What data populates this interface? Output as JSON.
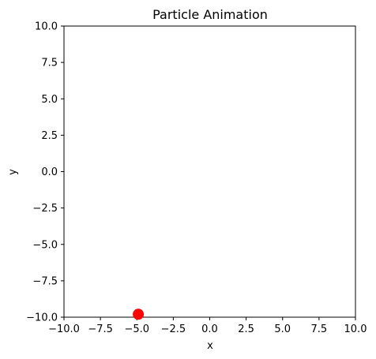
{
  "chart_data": {
    "type": "scatter",
    "title": "Particle Animation",
    "xlabel": "x",
    "ylabel": "y",
    "xlim": [
      -10,
      10
    ],
    "ylim": [
      -10,
      10
    ],
    "xticks": [
      -10.0,
      -7.5,
      -5.0,
      -2.5,
      0.0,
      2.5,
      5.0,
      7.5,
      10.0
    ],
    "xtick_labels": [
      "−10.0",
      "−7.5",
      "−5.0",
      "−2.5",
      "0.0",
      "2.5",
      "5.0",
      "7.5",
      "10.0"
    ],
    "yticks": [
      10.0,
      7.5,
      5.0,
      2.5,
      0.0,
      -2.5,
      -5.0,
      -7.5,
      -10.0
    ],
    "ytick_labels": [
      "10.0",
      "7.5",
      "5.0",
      "2.5",
      "0.0",
      "−2.5",
      "−5.0",
      "−7.5",
      "−10.0"
    ],
    "grid": false,
    "series": [
      {
        "color": "#ff0000",
        "points": [
          {
            "x": -4.9,
            "y": -9.8
          }
        ]
      }
    ]
  }
}
